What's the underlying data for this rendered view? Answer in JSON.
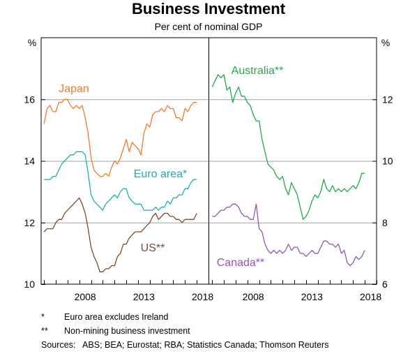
{
  "chart_data": {
    "type": "line",
    "title": "Business Investment",
    "subtitle": "Per cent of nominal GDP",
    "panels": [
      {
        "name": "left",
        "unit_label": "%",
        "ylim": [
          10,
          18
        ],
        "yticks": [
          10,
          12,
          14,
          16
        ],
        "xlim": [
          2004.75,
          2019.0
        ],
        "xticks": [
          2008,
          2013,
          2018
        ],
        "series": [
          {
            "name": "Japan",
            "color": "#f07b2b",
            "x": [
              2005.0,
              2005.25,
              2005.5,
              2005.75,
              2006.0,
              2006.25,
              2006.5,
              2006.75,
              2007.0,
              2007.25,
              2007.5,
              2007.75,
              2008.0,
              2008.25,
              2008.5,
              2008.75,
              2009.0,
              2009.25,
              2009.5,
              2009.75,
              2010.0,
              2010.25,
              2010.5,
              2010.75,
              2011.0,
              2011.25,
              2011.5,
              2011.75,
              2012.0,
              2012.25,
              2012.5,
              2012.75,
              2013.0,
              2013.25,
              2013.5,
              2013.75,
              2014.0,
              2014.25,
              2014.5,
              2014.75,
              2015.0,
              2015.25,
              2015.5,
              2015.75,
              2016.0,
              2016.25,
              2016.5,
              2016.75,
              2017.0,
              2017.25,
              2017.5,
              2017.75,
              2018.0
            ],
            "y": [
              15.2,
              15.7,
              15.8,
              15.6,
              15.6,
              15.9,
              15.9,
              16.0,
              16.0,
              15.8,
              15.7,
              15.8,
              15.7,
              15.8,
              15.4,
              14.9,
              14.1,
              13.7,
              13.6,
              13.5,
              13.5,
              13.6,
              13.5,
              13.8,
              14.0,
              13.9,
              14.1,
              14.4,
              14.7,
              14.3,
              14.6,
              14.5,
              14.4,
              14.2,
              14.9,
              15.2,
              15.1,
              15.5,
              15.6,
              15.6,
              15.7,
              15.6,
              15.8,
              15.7,
              15.7,
              15.4,
              15.4,
              15.3,
              15.7,
              15.6,
              15.8,
              15.9,
              15.9
            ]
          },
          {
            "name": "Euro area*",
            "color": "#19b0ae",
            "x": [
              2005.0,
              2005.25,
              2005.5,
              2005.75,
              2006.0,
              2006.25,
              2006.5,
              2006.75,
              2007.0,
              2007.25,
              2007.5,
              2007.75,
              2008.0,
              2008.25,
              2008.5,
              2008.75,
              2009.0,
              2009.25,
              2009.5,
              2009.75,
              2010.0,
              2010.25,
              2010.5,
              2010.75,
              2011.0,
              2011.25,
              2011.5,
              2011.75,
              2012.0,
              2012.25,
              2012.5,
              2012.75,
              2013.0,
              2013.25,
              2013.5,
              2013.75,
              2014.0,
              2014.25,
              2014.5,
              2014.75,
              2015.0,
              2015.25,
              2015.5,
              2015.75,
              2016.0,
              2016.25,
              2016.5,
              2016.75,
              2017.0,
              2017.25,
              2017.5,
              2017.75,
              2018.0
            ],
            "y": [
              13.4,
              13.4,
              13.4,
              13.5,
              13.5,
              13.7,
              13.9,
              14.0,
              14.1,
              14.2,
              14.2,
              14.3,
              14.3,
              14.3,
              14.2,
              13.6,
              12.9,
              12.7,
              12.6,
              12.5,
              12.4,
              12.6,
              12.7,
              12.8,
              12.9,
              12.8,
              13.0,
              13.1,
              13.1,
              12.8,
              12.7,
              12.6,
              12.6,
              12.6,
              12.4,
              12.4,
              12.4,
              12.4,
              12.5,
              12.4,
              12.5,
              12.5,
              12.7,
              12.6,
              12.8,
              12.8,
              12.9,
              12.9,
              13.1,
              13.1,
              13.3,
              13.4,
              13.4
            ]
          },
          {
            "name": "US**",
            "color": "#7d4a2c",
            "x": [
              2005.0,
              2005.25,
              2005.5,
              2005.75,
              2006.0,
              2006.25,
              2006.5,
              2006.75,
              2007.0,
              2007.25,
              2007.5,
              2007.75,
              2008.0,
              2008.25,
              2008.5,
              2008.75,
              2009.0,
              2009.25,
              2009.5,
              2009.75,
              2010.0,
              2010.25,
              2010.5,
              2010.75,
              2011.0,
              2011.25,
              2011.5,
              2011.75,
              2012.0,
              2012.25,
              2012.5,
              2012.75,
              2013.0,
              2013.25,
              2013.5,
              2013.75,
              2014.0,
              2014.25,
              2014.5,
              2014.75,
              2015.0,
              2015.25,
              2015.5,
              2015.75,
              2016.0,
              2016.25,
              2016.5,
              2016.75,
              2017.0,
              2017.25,
              2017.5,
              2017.75,
              2018.0
            ],
            "y": [
              11.7,
              11.8,
              11.8,
              11.8,
              12.0,
              12.1,
              12.1,
              12.3,
              12.4,
              12.5,
              12.6,
              12.7,
              12.8,
              12.6,
              12.3,
              11.8,
              11.2,
              10.9,
              10.7,
              10.4,
              10.4,
              10.5,
              10.5,
              10.6,
              10.6,
              10.9,
              11.0,
              11.3,
              11.3,
              11.5,
              11.6,
              11.7,
              11.7,
              11.7,
              11.8,
              11.9,
              12.0,
              12.2,
              12.3,
              12.1,
              12.2,
              12.3,
              12.3,
              12.2,
              12.2,
              12.1,
              12.1,
              12.0,
              12.1,
              12.1,
              12.1,
              12.1,
              12.3
            ]
          }
        ]
      },
      {
        "name": "right",
        "unit_label": "%",
        "ylim": [
          6,
          14
        ],
        "yticks": [
          6,
          8,
          10,
          12
        ],
        "xlim": [
          2004.75,
          2019.0
        ],
        "xticks": [
          2008,
          2013,
          2018
        ],
        "series": [
          {
            "name": "Australia**",
            "color": "#1eaa4b",
            "x": [
              2005.0,
              2005.25,
              2005.5,
              2005.75,
              2006.0,
              2006.25,
              2006.5,
              2006.75,
              2007.0,
              2007.25,
              2007.5,
              2007.75,
              2008.0,
              2008.25,
              2008.5,
              2008.75,
              2009.0,
              2009.25,
              2009.5,
              2009.75,
              2010.0,
              2010.25,
              2010.5,
              2010.75,
              2011.0,
              2011.25,
              2011.5,
              2011.75,
              2012.0,
              2012.25,
              2012.5,
              2012.75,
              2013.0,
              2013.25,
              2013.5,
              2013.75,
              2014.0,
              2014.25,
              2014.5,
              2014.75,
              2015.0,
              2015.25,
              2015.5,
              2015.75,
              2016.0,
              2016.25,
              2016.5,
              2016.75,
              2017.0,
              2017.25,
              2017.5,
              2017.75,
              2018.0
            ],
            "y": [
              12.4,
              12.6,
              12.8,
              12.7,
              12.8,
              12.3,
              12.4,
              11.9,
              12.2,
              12.4,
              12.1,
              12.1,
              11.9,
              11.8,
              11.5,
              11.3,
              11.3,
              10.7,
              10.3,
              9.9,
              9.8,
              9.7,
              9.5,
              9.4,
              9.5,
              9.1,
              8.9,
              9.3,
              9.1,
              8.9,
              8.5,
              8.1,
              8.2,
              8.4,
              8.7,
              8.9,
              8.8,
              9.0,
              9.4,
              9.1,
              9.0,
              9.2,
              9.0,
              9.1,
              9.0,
              9.1,
              9.0,
              9.1,
              9.2,
              9.1,
              9.3,
              9.6,
              9.6
            ]
          },
          {
            "name": "Canada**",
            "color": "#9157b0",
            "x": [
              2005.0,
              2005.25,
              2005.5,
              2005.75,
              2006.0,
              2006.25,
              2006.5,
              2006.75,
              2007.0,
              2007.25,
              2007.5,
              2007.75,
              2008.0,
              2008.25,
              2008.5,
              2008.75,
              2009.0,
              2009.25,
              2009.5,
              2009.75,
              2010.0,
              2010.25,
              2010.5,
              2010.75,
              2011.0,
              2011.25,
              2011.5,
              2011.75,
              2012.0,
              2012.25,
              2012.5,
              2012.75,
              2013.0,
              2013.25,
              2013.5,
              2013.75,
              2014.0,
              2014.25,
              2014.5,
              2014.75,
              2015.0,
              2015.25,
              2015.5,
              2015.75,
              2016.0,
              2016.25,
              2016.5,
              2016.75,
              2017.0,
              2017.25,
              2017.5,
              2017.75,
              2018.0
            ],
            "y": [
              8.2,
              8.2,
              8.3,
              8.4,
              8.4,
              8.5,
              8.5,
              8.6,
              8.6,
              8.5,
              8.3,
              8.2,
              8.2,
              8.1,
              8.1,
              8.6,
              7.8,
              7.7,
              7.3,
              7.1,
              7.0,
              7.1,
              7.0,
              7.1,
              7.0,
              7.1,
              7.3,
              7.1,
              7.2,
              7.2,
              7.0,
              7.0,
              6.9,
              7.0,
              7.1,
              7.0,
              7.0,
              7.2,
              7.4,
              7.4,
              7.3,
              7.3,
              7.2,
              7.3,
              7.0,
              7.1,
              6.7,
              6.6,
              6.7,
              6.9,
              6.8,
              6.9,
              7.1
            ]
          }
        ]
      }
    ],
    "footnotes": [
      {
        "mark": "*",
        "text": "Euro area excludes Ireland"
      },
      {
        "mark": "**",
        "text": "Non-mining business investment"
      }
    ],
    "sources": "Sources:   ABS; BEA; Eurostat; RBA; Statistics Canada; Thomson Reuters",
    "grid": true
  }
}
